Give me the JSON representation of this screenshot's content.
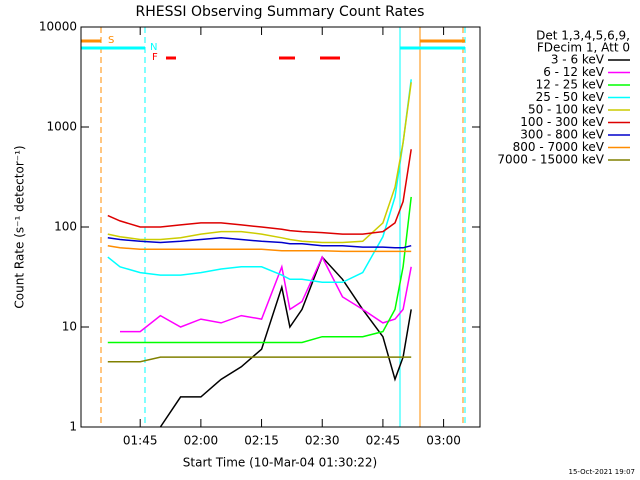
{
  "chart_data": {
    "type": "line",
    "title": "RHESSI Observing Summary Count Rates",
    "x_label": "Start Time (10-Mar-04 01:30:22)",
    "y_label": "Count Rate (s⁻¹ detector⁻¹)",
    "legend_header": [
      "Det 1,3,4,5,6,9,",
      "FDecim 1, Att 0"
    ],
    "annotations": [
      "S",
      "N",
      "F"
    ],
    "footer": "15-Oct-2021 19:07",
    "log_y": true,
    "xlim": [
      "01:30:22",
      "03:09"
    ],
    "xticks": [
      "01:45",
      "02:00",
      "02:15",
      "02:30",
      "02:45",
      "03:00"
    ],
    "ylim": [
      1,
      10000
    ],
    "yticks": [
      1,
      10,
      100,
      1000,
      10000
    ],
    "x": [
      "01:37",
      "01:40",
      "01:45",
      "01:50",
      "01:55",
      "02:00",
      "02:05",
      "02:10",
      "02:15",
      "02:20",
      "02:22",
      "02:25",
      "02:30",
      "02:35",
      "02:40",
      "02:45",
      "02:48",
      "02:50",
      "02:52"
    ],
    "series": [
      {
        "name": "3 - 6 keV",
        "color": "#000000",
        "values": [
          null,
          null,
          null,
          1,
          2,
          2,
          3,
          4,
          6,
          25,
          10,
          15,
          50,
          30,
          15,
          8,
          3,
          5,
          15
        ]
      },
      {
        "name": "6 - 12 keV",
        "color": "#ff00ff",
        "values": [
          null,
          9,
          9,
          13,
          10,
          12,
          11,
          13,
          12,
          40,
          15,
          18,
          50,
          20,
          15,
          11,
          12,
          15,
          40
        ]
      },
      {
        "name": "12 - 25 keV",
        "color": "#00ff00",
        "values": [
          7,
          7,
          7,
          7,
          7,
          7,
          7,
          7,
          7,
          7,
          7,
          7,
          8,
          8,
          8,
          9,
          15,
          40,
          200
        ]
      },
      {
        "name": "25 - 50 keV",
        "color": "#00ffff",
        "values": [
          50,
          40,
          35,
          33,
          33,
          35,
          38,
          40,
          40,
          33,
          30,
          30,
          28,
          28,
          35,
          80,
          200,
          700,
          3000
        ]
      },
      {
        "name": "50 - 100 keV",
        "color": "#cccc00",
        "values": [
          85,
          80,
          75,
          75,
          78,
          85,
          90,
          90,
          85,
          78,
          75,
          72,
          70,
          70,
          72,
          110,
          250,
          700,
          2800
        ]
      },
      {
        "name": "100 - 300 keV",
        "color": "#dd0000",
        "values": [
          130,
          115,
          100,
          100,
          105,
          110,
          110,
          105,
          100,
          95,
          92,
          90,
          88,
          85,
          85,
          90,
          110,
          180,
          600
        ]
      },
      {
        "name": "300 - 800 keV",
        "color": "#0000cc",
        "values": [
          78,
          75,
          72,
          70,
          72,
          75,
          78,
          75,
          72,
          70,
          68,
          68,
          65,
          65,
          63,
          63,
          62,
          62,
          65
        ]
      },
      {
        "name": "800 - 7000 keV",
        "color": "#ff8c00",
        "values": [
          65,
          62,
          60,
          60,
          60,
          60,
          60,
          60,
          60,
          58,
          58,
          58,
          58,
          57,
          57,
          57,
          57,
          57,
          57
        ]
      },
      {
        "name": "7000 - 15000 keV",
        "color": "#808000",
        "values": [
          4.5,
          4.5,
          4.5,
          5,
          5,
          5,
          5,
          5,
          5,
          5,
          5,
          5,
          5,
          5,
          5,
          5,
          5,
          5,
          5
        ]
      }
    ]
  }
}
